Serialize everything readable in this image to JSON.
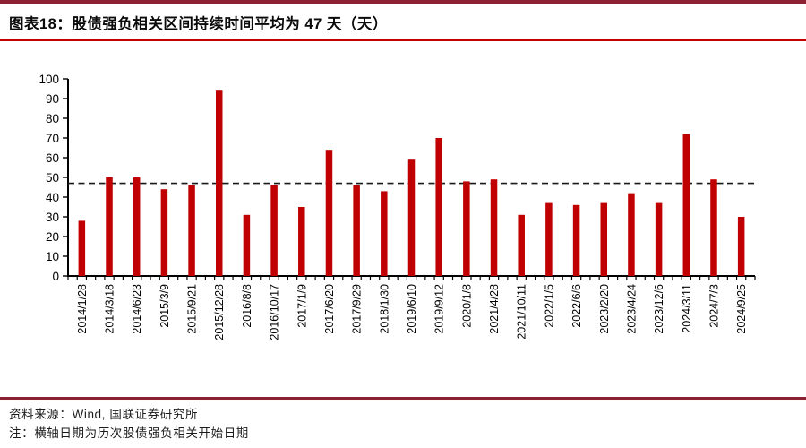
{
  "header": {
    "title": "图表18：股债强负相关区间持续时间平均为 47 天（天）"
  },
  "chart_data": {
    "type": "bar",
    "title": "股债强负相关区间持续时间平均为 47 天（天）",
    "categories": [
      "2014/1/28",
      "2014/3/18",
      "2014/6/23",
      "2015/3/9",
      "2015/9/21",
      "2015/12/28",
      "2016/8/8",
      "2016/10/17",
      "2017/1/9",
      "2017/6/20",
      "2017/9/29",
      "2018/1/30",
      "2019/6/10",
      "2019/9/12",
      "2020/1/8",
      "2021/4/28",
      "2021/10/11",
      "2022/1/5",
      "2022/6/6",
      "2023/2/20",
      "2023/4/24",
      "2023/12/6",
      "2024/3/11",
      "2024/7/3",
      "2024/9/25"
    ],
    "values": [
      28,
      50,
      50,
      44,
      46,
      94,
      31,
      46,
      35,
      64,
      46,
      43,
      59,
      70,
      48,
      49,
      31,
      37,
      36,
      37,
      42,
      37,
      72,
      49,
      30
    ],
    "average_line": 47,
    "avg_line_style": "dashed",
    "xlabel": "",
    "ylabel": "",
    "ylim": [
      0,
      100
    ],
    "ytick_step": 10,
    "grid": false,
    "legend": null,
    "bar_color": "#C00000",
    "axis_color": "#000000",
    "label_color": "#000000"
  },
  "footer": {
    "source": "资料来源：Wind, 国联证券研究所",
    "note": "注：横轴日期为历次股债强负相关开始日期"
  },
  "colors": {
    "rule_dark": "#8D2134",
    "rule_red": "#C00000"
  }
}
